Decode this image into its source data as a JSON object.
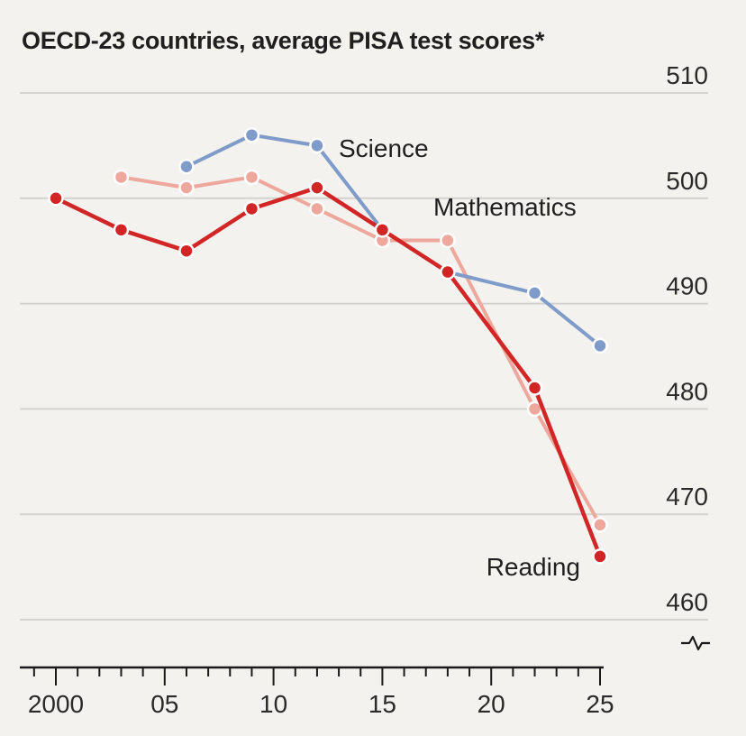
{
  "chart_data": {
    "type": "line",
    "title": "OECD-23 countries, average PISA test scores*",
    "x_tick_labels": [
      {
        "x": 2000,
        "label": "2000"
      },
      {
        "x": 2005,
        "label": "05"
      },
      {
        "x": 2010,
        "label": "10"
      },
      {
        "x": 2015,
        "label": "15"
      },
      {
        "x": 2020,
        "label": "20"
      },
      {
        "x": 2025,
        "label": "25"
      }
    ],
    "y_ticks": [
      460,
      470,
      480,
      490,
      500,
      510
    ],
    "xlim": [
      1998.5,
      2026
    ],
    "ylim": [
      455.5,
      512
    ],
    "axis_break": true,
    "grid": true,
    "series": [
      {
        "name": "Mathematics",
        "color": "#eda79c",
        "x": [
          2003,
          2006,
          2009,
          2012,
          2015,
          2018,
          2022,
          2025
        ],
        "values": [
          502,
          501,
          502,
          499,
          496,
          496,
          480,
          469
        ]
      },
      {
        "name": "Science",
        "color": "#7f9bc9",
        "x": [
          2006,
          2009,
          2012,
          2015,
          2018,
          2022,
          2025
        ],
        "values": [
          503,
          506,
          505,
          497,
          493,
          491,
          486
        ]
      },
      {
        "name": "Reading",
        "color": "#d22626",
        "x": [
          2000,
          2003,
          2006,
          2009,
          2012,
          2015,
          2018,
          2022,
          2025
        ],
        "values": [
          500,
          497,
          495,
          499,
          501,
          497,
          493,
          482,
          466
        ]
      }
    ]
  }
}
